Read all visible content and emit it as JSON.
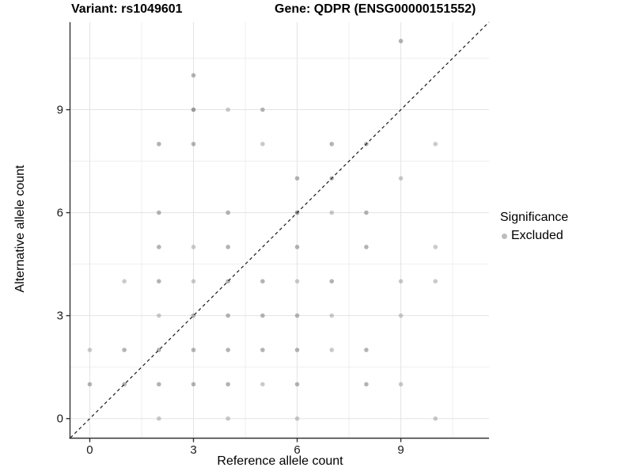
{
  "header": {
    "variant_title": "Variant: rs1049601",
    "gene_title": "Gene: QDPR (ENSG00000151552)"
  },
  "legend": {
    "title": "Significance",
    "items": [
      {
        "label": "Excluded",
        "key_color": "#bdbdbd"
      }
    ]
  },
  "colors": {
    "point": "#8a8a8a",
    "grid_major": "#e3e3e3",
    "grid_minor": "#efefef",
    "axis_line": "#333333",
    "tick_mark": "#333333",
    "tick_label": "#1a1a1a",
    "abline": "#1a1a1a"
  },
  "chart_data": {
    "type": "scatter",
    "title": "",
    "xlabel": "Reference allele count",
    "ylabel": "Alternative allele count",
    "x_ticks": [
      0,
      3,
      6,
      9
    ],
    "y_ticks": [
      0,
      3,
      6,
      9
    ],
    "x_minor_ticks": [
      1.5,
      4.5,
      7.5,
      10.5
    ],
    "y_minor_ticks": [
      1.5,
      4.5,
      7.5,
      10.5
    ],
    "xlim": [
      -0.56,
      11.55
    ],
    "ylim": [
      -0.56,
      11.55
    ],
    "grid": "on",
    "legend_position": "right",
    "abline": {
      "slope": 1,
      "intercept": 0,
      "style": "dashed"
    },
    "point_shape": "circle",
    "shade_opacity": {
      "1": 0.45,
      "2": 0.65,
      "3": 0.85
    },
    "points_format": "[reference_allele_count, alternative_allele_count, shade]",
    "points": [
      [
        2,
        0,
        1
      ],
      [
        4,
        0,
        1
      ],
      [
        6,
        0,
        1
      ],
      [
        10,
        0,
        1
      ],
      [
        0,
        1,
        2
      ],
      [
        1,
        1,
        2
      ],
      [
        2,
        1,
        2
      ],
      [
        3,
        1,
        2
      ],
      [
        4,
        1,
        2
      ],
      [
        5,
        1,
        1
      ],
      [
        6,
        1,
        2
      ],
      [
        8,
        1,
        2
      ],
      [
        9,
        1,
        1
      ],
      [
        0,
        2,
        1
      ],
      [
        1,
        2,
        2
      ],
      [
        2,
        2,
        2
      ],
      [
        3,
        2,
        2
      ],
      [
        4,
        2,
        2
      ],
      [
        5,
        2,
        2
      ],
      [
        6,
        2,
        2
      ],
      [
        7,
        2,
        1
      ],
      [
        8,
        2,
        2
      ],
      [
        2,
        3,
        1
      ],
      [
        3,
        3,
        2
      ],
      [
        4,
        3,
        2
      ],
      [
        5,
        3,
        2
      ],
      [
        6,
        3,
        2
      ],
      [
        7,
        3,
        1
      ],
      [
        9,
        3,
        1
      ],
      [
        1,
        4,
        1
      ],
      [
        2,
        4,
        2
      ],
      [
        3,
        4,
        1
      ],
      [
        4,
        4,
        2
      ],
      [
        5,
        4,
        2
      ],
      [
        6,
        4,
        1
      ],
      [
        7,
        4,
        2
      ],
      [
        9,
        4,
        1
      ],
      [
        10,
        4,
        1
      ],
      [
        2,
        5,
        2
      ],
      [
        3,
        5,
        1
      ],
      [
        4,
        5,
        2
      ],
      [
        6,
        5,
        2
      ],
      [
        8,
        5,
        2
      ],
      [
        10,
        5,
        1
      ],
      [
        2,
        6,
        2
      ],
      [
        4,
        6,
        2
      ],
      [
        6,
        6,
        3
      ],
      [
        7,
        6,
        1
      ],
      [
        8,
        6,
        2
      ],
      [
        6,
        7,
        2
      ],
      [
        7,
        7,
        2
      ],
      [
        9,
        7,
        1
      ],
      [
        2,
        8,
        2
      ],
      [
        3,
        8,
        2
      ],
      [
        5,
        8,
        1
      ],
      [
        7,
        8,
        2
      ],
      [
        8,
        8,
        2
      ],
      [
        10,
        8,
        1
      ],
      [
        3,
        9,
        3
      ],
      [
        4,
        9,
        1
      ],
      [
        5,
        9,
        2
      ],
      [
        3,
        10,
        2
      ],
      [
        9,
        11,
        2
      ]
    ]
  }
}
